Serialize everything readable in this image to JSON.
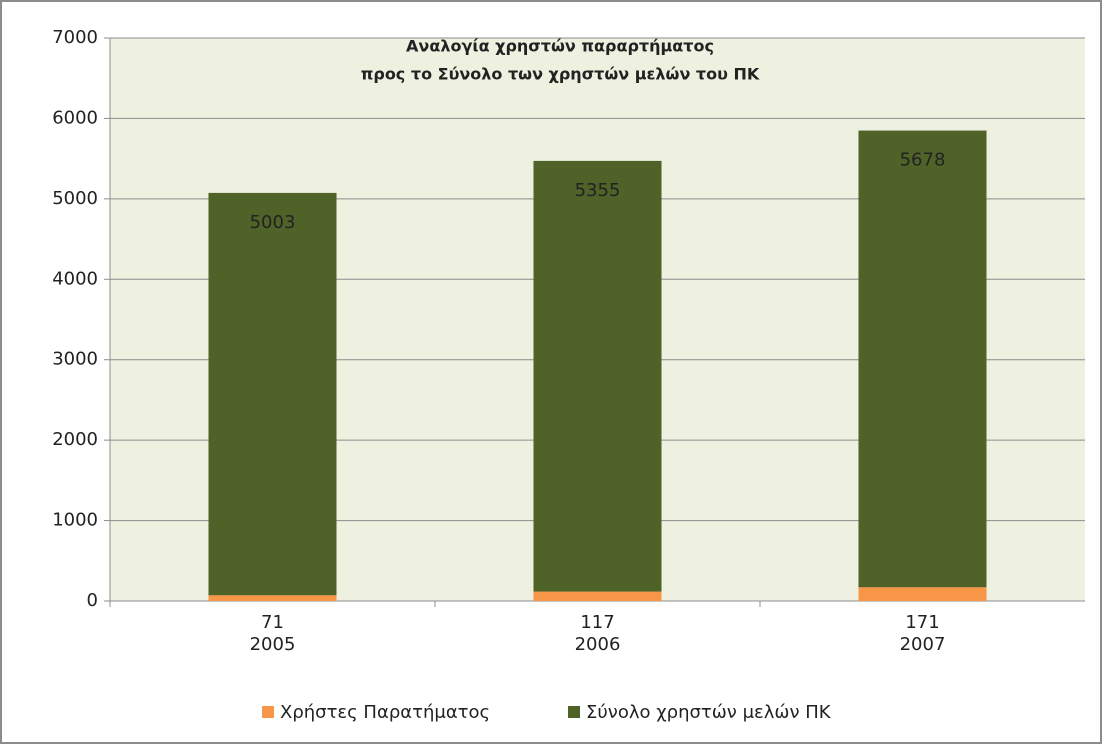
{
  "chart_data": {
    "type": "stacked_bar",
    "title": [
      "Αναλογία χρηστών παραρτήματος",
      "προς το Σύνολο των χρηστών μελών του ΠΚ"
    ],
    "categories": [
      "2005",
      "2006",
      "2007"
    ],
    "series": [
      {
        "name": "Χρήστες Παρατήματος",
        "color": "#f79646",
        "values": [
          71,
          117,
          171
        ]
      },
      {
        "name": "Σύνολο χρηστών μελών ΠΚ",
        "color": "#4f6228",
        "values": [
          5003,
          5355,
          5678
        ]
      }
    ],
    "ylim": [
      0,
      7000
    ],
    "yticks": [
      0,
      1000,
      2000,
      3000,
      4000,
      5000,
      6000,
      7000
    ],
    "grid": true,
    "legend": "bottom",
    "plot_background": "#eef0e0"
  }
}
